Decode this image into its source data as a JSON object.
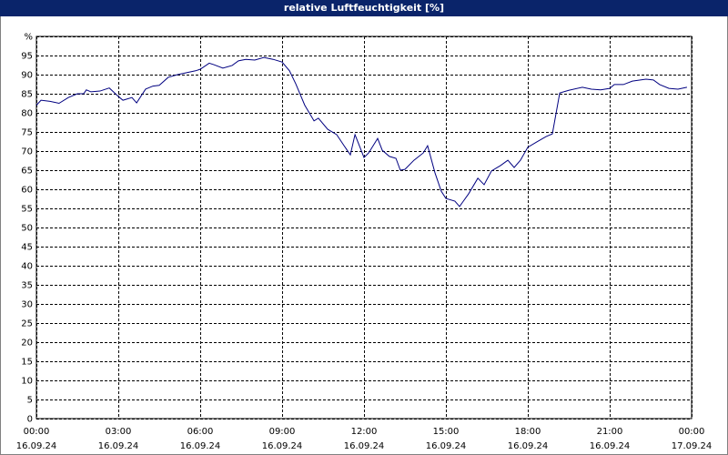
{
  "chart_data": {
    "type": "line",
    "title": "relative Luftfeuchtigkeit [%]",
    "series": [
      {
        "name": "relative Luftfeuchtigkeit",
        "color": "#000080",
        "x": [
          0,
          0.17,
          0.5,
          0.83,
          1.17,
          1.5,
          1.73,
          1.83,
          2,
          2.33,
          2.67,
          3,
          3.17,
          3.5,
          3.67,
          4,
          4.27,
          4.5,
          4.83,
          5.17,
          5.5,
          5.83,
          6,
          6.33,
          6.5,
          6.83,
          7.17,
          7.4,
          7.67,
          8,
          8.33,
          8.67,
          9,
          9.27,
          9.5,
          9.83,
          10.17,
          10.33,
          10.67,
          11,
          11.27,
          11.5,
          11.67,
          11.83,
          12,
          12.17,
          12.5,
          12.67,
          12.93,
          13.17,
          13.33,
          13.5,
          13.83,
          14.17,
          14.33,
          14.6,
          14.83,
          15,
          15.33,
          15.5,
          15.83,
          16.17,
          16.4,
          16.67,
          17,
          17.27,
          17.5,
          17.73,
          18,
          18.33,
          18.67,
          18.9,
          19.17,
          19.5,
          20,
          20.33,
          20.67,
          21,
          21.17,
          21.5,
          21.83,
          22.33,
          22.6,
          22.83,
          23.17,
          23.5,
          23.83
        ],
        "values": [
          82,
          83.3,
          83,
          82.5,
          84,
          85,
          85,
          86,
          85.5,
          85.7,
          86.5,
          84.3,
          83.3,
          84,
          82.6,
          86.2,
          87,
          87.2,
          89.3,
          90,
          90.5,
          91,
          91.4,
          93,
          92.6,
          91.7,
          92.4,
          93.6,
          94,
          93.8,
          94.5,
          94,
          93.3,
          91,
          87.6,
          82,
          77.9,
          78.6,
          75.7,
          74.3,
          71.4,
          69,
          74.3,
          71.4,
          68.3,
          69.5,
          73.3,
          70.2,
          68.6,
          68.1,
          65,
          65.2,
          67.6,
          69.5,
          71.4,
          64.3,
          59.5,
          57.6,
          56.9,
          55.5,
          58.8,
          62.9,
          61.2,
          64.8,
          66.2,
          67.6,
          65.7,
          67.6,
          71,
          72.4,
          73.8,
          74.5,
          85.2,
          85.9,
          86.7,
          86.2,
          86,
          86.4,
          87.4,
          87.4,
          88.3,
          88.8,
          88.6,
          87.4,
          86.4,
          86.2,
          86.7
        ]
      }
    ],
    "xlim": [
      0,
      24
    ],
    "xticks": [
      {
        "value": 0,
        "label": "00:00",
        "date": "16.09.24"
      },
      {
        "value": 3,
        "label": "03:00",
        "date": "16.09.24"
      },
      {
        "value": 6,
        "label": "06:00",
        "date": "16.09.24"
      },
      {
        "value": 9,
        "label": "09:00",
        "date": "16.09.24"
      },
      {
        "value": 12,
        "label": "12:00",
        "date": "16.09.24"
      },
      {
        "value": 15,
        "label": "15:00",
        "date": "16.09.24"
      },
      {
        "value": 18,
        "label": "18:00",
        "date": "16.09.24"
      },
      {
        "value": 21,
        "label": "21:00",
        "date": "16.09.24"
      },
      {
        "value": 24,
        "label": "00:00",
        "date": "17.09.24"
      }
    ],
    "ylim": [
      0,
      100
    ],
    "yticks": [
      0,
      5,
      10,
      15,
      20,
      25,
      30,
      35,
      40,
      45,
      50,
      55,
      60,
      65,
      70,
      75,
      80,
      85,
      90,
      95,
      {
        "value": 100,
        "label": "%"
      }
    ],
    "grid": true
  }
}
